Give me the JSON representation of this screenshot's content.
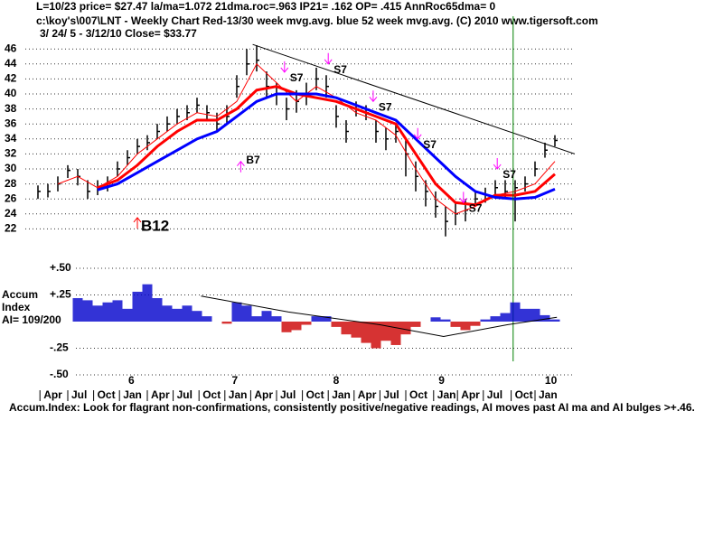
{
  "chart_data": [
    {
      "type": "hlc",
      "title": "L=10/23  price= $27.47  la/ma=1.072 21dma.roc=.963 IP21= .162 OP= .415 AnnRoc65dma= 0",
      "subtitle": "c:\\koy's\\007\\LNT  - Weekly Chart  Red-13/30 week mvg.avg.  blue 52 week mvg.avg.  (C) 2010 www.tigersoft.com",
      "period": "3/ 24/ 5 - 3/12/10    Close= $33.77",
      "x": [
        0,
        5,
        10,
        15,
        20,
        25,
        30,
        35,
        40,
        45,
        50,
        55,
        60,
        65,
        70,
        75,
        80,
        85,
        90,
        95,
        100,
        105,
        110,
        115,
        120,
        125,
        130,
        135,
        140,
        145,
        150,
        155,
        160,
        165,
        170,
        175,
        180,
        185,
        190,
        195,
        200,
        205,
        210,
        215,
        220,
        225,
        230,
        235,
        240,
        245,
        250,
        255,
        260
      ],
      "high": [
        27.8,
        28,
        29,
        30.5,
        30,
        28.5,
        28.5,
        29,
        31,
        32.5,
        34,
        34.5,
        36,
        37,
        38,
        38.5,
        39.5,
        38.5,
        37.5,
        38.5,
        42.5,
        46,
        46.5,
        43,
        41.5,
        39.5,
        40.5,
        41.5,
        43.5,
        42.5,
        38.5,
        36.5,
        39,
        38.5,
        36.5,
        35.5,
        36,
        34,
        31,
        28.5,
        27,
        25,
        25.5,
        26,
        27,
        27.5,
        28.5,
        28.5,
        28.5,
        29,
        31,
        33.5,
        34.5
      ],
      "low": [
        26,
        26.2,
        27,
        28.8,
        27.8,
        26,
        26.5,
        27,
        29,
        30.5,
        32,
        32.5,
        34,
        35,
        36,
        36.5,
        37.5,
        36.5,
        35,
        36,
        39.5,
        42.5,
        43,
        39.5,
        38.5,
        36.5,
        37.5,
        38.5,
        40.5,
        39.5,
        35.5,
        33.5,
        37,
        36.5,
        33.5,
        32.5,
        33.5,
        29,
        27,
        25,
        23.5,
        21,
        22.5,
        23,
        25,
        25.5,
        26.5,
        26,
        23,
        27,
        29,
        31.5,
        33
      ],
      "close": [
        27,
        27,
        28,
        29.8,
        29,
        27,
        27.5,
        28,
        30,
        31.5,
        33,
        33.5,
        35,
        36,
        37,
        37.5,
        38.5,
        37.5,
        36,
        37,
        41,
        44,
        44.5,
        41,
        40,
        38,
        39,
        40,
        42,
        41,
        37,
        35,
        38,
        37.5,
        35,
        34,
        35,
        32,
        29,
        27,
        25,
        23,
        24,
        24.5,
        26,
        26.5,
        27.5,
        27,
        27.5,
        28,
        30,
        32.5,
        33.8
      ],
      "bar_color": "#000000",
      "lines": [
        {
          "color": "#ff0000",
          "width": 1,
          "x": [
            10,
            20,
            30,
            40,
            50,
            60,
            70,
            80,
            90,
            100,
            110,
            120,
            130,
            140,
            150,
            160,
            170,
            180,
            190,
            200,
            210,
            220,
            230,
            240,
            250,
            260
          ],
          "values": [
            28,
            29,
            27.5,
            29,
            32,
            34,
            36,
            37.5,
            37,
            39,
            44,
            41.5,
            39,
            41,
            39.5,
            37.5,
            36.5,
            34.5,
            30,
            26,
            24,
            25,
            26.5,
            27,
            28,
            31
          ]
        },
        {
          "color": "#ff0000",
          "width": 3,
          "x": [
            30,
            40,
            50,
            60,
            70,
            80,
            90,
            100,
            110,
            120,
            130,
            140,
            150,
            160,
            170,
            180,
            190,
            200,
            210,
            220,
            230,
            240,
            250,
            260
          ],
          "values": [
            27.5,
            28.5,
            30.5,
            33,
            35,
            36.5,
            36.5,
            38,
            40.5,
            41,
            40,
            39.5,
            39,
            38,
            37,
            36,
            32,
            28,
            25.5,
            25.2,
            26.5,
            26.5,
            27,
            29.3
          ]
        },
        {
          "color": "#0000ff",
          "width": 3,
          "x": [
            30,
            40,
            50,
            60,
            70,
            80,
            90,
            100,
            110,
            120,
            130,
            140,
            150,
            160,
            170,
            180,
            190,
            200,
            210,
            220,
            230,
            240,
            250,
            260
          ],
          "values": [
            27.2,
            28,
            29.5,
            31,
            32.5,
            34,
            35,
            37,
            39,
            40,
            40,
            40,
            39.5,
            38.5,
            37.5,
            36.5,
            34,
            31.5,
            29,
            27,
            26.2,
            26,
            26.2,
            27.3
          ]
        }
      ],
      "trendline": {
        "x": [
          108,
          270
        ],
        "values": [
          46.6,
          32
        ],
        "color": "#000000"
      },
      "marker_x": 239,
      "marker_color": "#008000",
      "signals": [
        {
          "label": "B12",
          "x": 50,
          "y": 23.5,
          "dir": "up",
          "color": "#ff0000",
          "size": "large"
        },
        {
          "label": "B7",
          "x": 102,
          "y": 31,
          "dir": "up",
          "color": "#ff00ff",
          "size": "small"
        },
        {
          "label": "S7",
          "x": 124,
          "y": 42.9,
          "dir": "down",
          "color": "#ff00ff",
          "size": "small"
        },
        {
          "label": "S7",
          "x": 146,
          "y": 44,
          "dir": "down",
          "color": "#ff00ff",
          "size": "small"
        },
        {
          "label": "S7",
          "x": 168.6,
          "y": 39,
          "dir": "down",
          "color": "#ff00ff",
          "size": "small"
        },
        {
          "label": "S7",
          "x": 191,
          "y": 34,
          "dir": "down",
          "color": "#ff00ff",
          "size": "small"
        },
        {
          "label": "S7",
          "x": 214,
          "y": 25.5,
          "dir": "down",
          "color": "#ff00ff",
          "size": "small"
        },
        {
          "label": "S7",
          "x": 231,
          "y": 30,
          "dir": "down",
          "color": "#ff00ff",
          "size": "small"
        }
      ],
      "xlim": [
        0,
        270
      ],
      "ylim": [
        20,
        50
      ],
      "yticks": [
        22,
        24,
        26,
        28,
        30,
        32,
        34,
        36,
        38,
        40,
        42,
        44,
        46
      ],
      "grid": true,
      "xticks": [
        {
          "value": 1,
          "label": "Apr"
        },
        {
          "value": 15,
          "label": "Jul"
        },
        {
          "value": 28,
          "label": "Oct"
        },
        {
          "value": 41,
          "label": "Jan"
        },
        {
          "value": 55,
          "label": "Apr"
        },
        {
          "value": 68,
          "label": "Jul"
        },
        {
          "value": 81,
          "label": "Oct"
        },
        {
          "value": 94,
          "label": "Jan"
        },
        {
          "value": 107,
          "label": "Apr"
        },
        {
          "value": 120,
          "label": "Jul"
        },
        {
          "value": 133,
          "label": "Oct"
        },
        {
          "value": 146,
          "label": "Jan"
        },
        {
          "value": 159,
          "label": "Apr"
        },
        {
          "value": 172,
          "label": "Jul"
        },
        {
          "value": 185,
          "label": "Oct"
        },
        {
          "value": 199,
          "label": "Jan"
        },
        {
          "value": 211,
          "label": "Apr"
        },
        {
          "value": 224,
          "label": "Jul"
        },
        {
          "value": 238,
          "label": "Oct"
        },
        {
          "value": 250,
          "label": "Jan"
        }
      ],
      "year_ticks": [
        {
          "value": 47,
          "label": "6"
        },
        {
          "value": 99,
          "label": "7"
        },
        {
          "value": 150,
          "label": "8"
        },
        {
          "value": 203,
          "label": "9"
        },
        {
          "value": 258,
          "label": "10"
        }
      ]
    },
    {
      "type": "accum",
      "label_lines": [
        "Accum",
        "Index",
        "AI= 109/200"
      ],
      "x": [
        20,
        25,
        30,
        35,
        40,
        45,
        50,
        55,
        60,
        65,
        70,
        75,
        80,
        85,
        90,
        95,
        100,
        105,
        110,
        115,
        120,
        125,
        130,
        135,
        140,
        145,
        150,
        155,
        160,
        165,
        170,
        175,
        180,
        185,
        190,
        195,
        200,
        205,
        210,
        215,
        220,
        225,
        230,
        235,
        240,
        245,
        250,
        255,
        260
      ],
      "values": [
        0.22,
        0.2,
        0.15,
        0.18,
        0.2,
        0.12,
        0.28,
        0.35,
        0.22,
        0.15,
        0.12,
        0.15,
        0.1,
        0.05,
        0,
        -0.02,
        0.18,
        0.15,
        0.05,
        0.1,
        0.05,
        -0.1,
        -0.08,
        -0.03,
        0.05,
        0.05,
        -0.05,
        -0.12,
        -0.15,
        -0.2,
        -0.25,
        -0.18,
        -0.22,
        -0.12,
        -0.05,
        0,
        0.04,
        0.02,
        -0.05,
        -0.08,
        -0.04,
        0.02,
        0.05,
        0.08,
        0.18,
        0.12,
        0.12,
        0.06,
        0.02
      ],
      "pos_color": "#0000cc",
      "neg_color": "#cc0000",
      "ma": {
        "x": [
          82,
          126,
          172,
          204,
          236,
          261
        ],
        "values": [
          0.24,
          0.09,
          -0.03,
          -0.14,
          -0.03,
          0.04
        ],
        "color": "#000000"
      },
      "xlim": [
        0,
        270
      ],
      "ylim": [
        -0.5,
        0.5
      ],
      "yticks": [
        {
          "value": 0.5,
          "label": "+.50"
        },
        {
          "value": 0.25,
          "label": "+.25"
        },
        {
          "value": -0.25,
          "label": "-.25"
        },
        {
          "value": -0.5,
          "label": "-.50"
        }
      ],
      "grid": true,
      "note": "Accum.Index: Look for flagrant non-confirmations, consistently positive/negative readings, AI moves past AI ma and AI bulges >+.46."
    }
  ]
}
